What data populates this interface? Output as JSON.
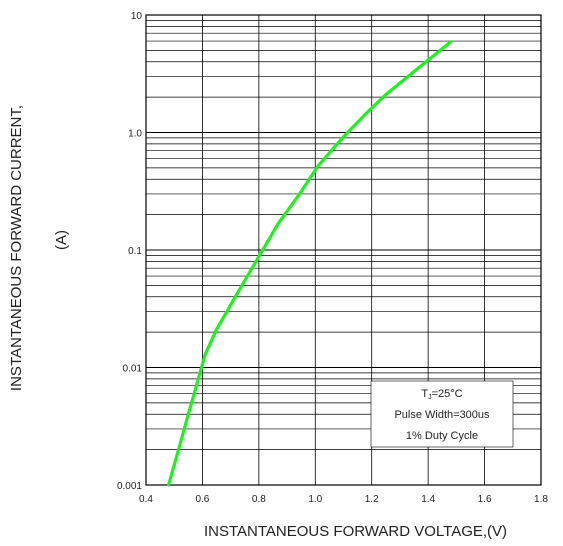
{
  "chart_data": {
    "type": "line",
    "title": "",
    "xlabel": "INSTANTANEOUS FORWARD VOLTAGE,(V)",
    "ylabel": "INSTANTANEOUS FORWARD CURRENT,",
    "ylabel_unit": "(A)",
    "xlim": [
      0.4,
      1.8
    ],
    "ylim": [
      0.001,
      10
    ],
    "yscale": "log",
    "grid": true,
    "x_ticks": [
      "0.4",
      "0.6",
      "0.8",
      "1.0",
      "1.2",
      "1.4",
      "1.6",
      "1.8"
    ],
    "y_ticks": [
      "0.001",
      "0.01",
      "0.1",
      "1.0",
      "10"
    ],
    "series": [
      {
        "color": "#22ee22",
        "points": [
          [
            0.48,
            0.001
          ],
          [
            0.52,
            0.0022
          ],
          [
            0.55,
            0.004
          ],
          [
            0.58,
            0.0072
          ],
          [
            0.61,
            0.013
          ],
          [
            0.65,
            0.021
          ],
          [
            0.7,
            0.034
          ],
          [
            0.75,
            0.055
          ],
          [
            0.8,
            0.088
          ],
          [
            0.87,
            0.17
          ],
          [
            0.94,
            0.29
          ],
          [
            1.01,
            0.52
          ],
          [
            1.1,
            0.92
          ],
          [
            1.18,
            1.45
          ],
          [
            1.25,
            2.1
          ],
          [
            1.35,
            3.3
          ],
          [
            1.48,
            5.9
          ]
        ]
      }
    ],
    "annotation": {
      "lines": [
        {
          "main": "T",
          "sub": "J",
          "rest": "=25°C"
        },
        {
          "main": "Pulse Width=300us"
        },
        {
          "main": "1% Duty Cycle"
        }
      ]
    }
  }
}
